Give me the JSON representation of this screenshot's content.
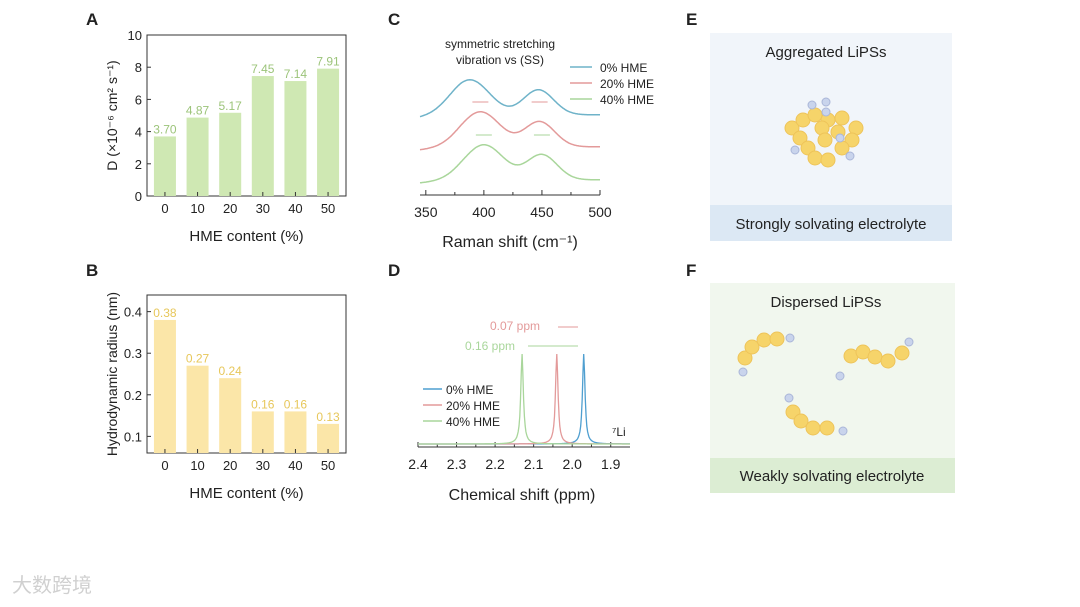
{
  "watermark": "大数跨境",
  "colors": {
    "green_bar": "#cfe8b3",
    "green_label": "#9cc47a",
    "yellow_bar": "#fbe6a8",
    "yellow_label": "#e7c75a",
    "c0": "#6fb3c9",
    "c20": "#e39a9a",
    "c40": "#a9d69b",
    "nmr0": "#4f9fd0",
    "ebox": "#f1f5fa",
    "eband": "#dce8f4",
    "fbox": "#f1f7ee",
    "fband": "#dcedd3",
    "sulfur": "#f6d46a",
    "li": "#c9d4ec"
  },
  "chart_data": [
    {
      "panel": "A",
      "type": "bar",
      "categories": [
        "0",
        "10",
        "20",
        "30",
        "40",
        "50"
      ],
      "values": [
        3.7,
        4.87,
        5.17,
        7.45,
        7.14,
        7.91
      ],
      "labels": [
        "3.70",
        "4.87",
        "5.17",
        "7.45",
        "7.14",
        "7.91"
      ],
      "xlabel": "HME content (%)",
      "ylabel": "D (×10⁻⁶ cm² s⁻¹)",
      "ylim": [
        0,
        10
      ],
      "yticks": [
        "0",
        "2",
        "4",
        "6",
        "8",
        "10"
      ]
    },
    {
      "panel": "B",
      "type": "bar",
      "categories": [
        "0",
        "10",
        "20",
        "30",
        "40",
        "50"
      ],
      "values": [
        0.38,
        0.27,
        0.24,
        0.16,
        0.16,
        0.13
      ],
      "labels": [
        "0.38",
        "0.27",
        "0.24",
        "0.16",
        "0.16",
        "0.13"
      ],
      "xlabel": "HME content (%)",
      "ylabel": "Hydrodynamic radius (nm)",
      "ylim": [
        0.06,
        0.44
      ],
      "yticks": [
        "0.1",
        "0.2",
        "0.3",
        "0.4"
      ],
      "ytick_values": [
        0.1,
        0.2,
        0.3,
        0.4
      ]
    },
    {
      "panel": "C",
      "type": "line",
      "annotation": [
        "symmetric stretching",
        "vibration vs (SS)"
      ],
      "xlabel": "Raman shift (cm⁻¹)",
      "xlim": [
        345,
        500
      ],
      "xticks": [
        "350",
        "400",
        "450",
        "500"
      ],
      "xtick_values": [
        350,
        400,
        450,
        500
      ],
      "series": [
        {
          "name": "0% HME",
          "peaks": [
            388,
            447
          ]
        },
        {
          "name": "20% HME",
          "peaks": [
            397,
            448
          ]
        },
        {
          "name": "40% HME",
          "peaks": [
            400,
            450
          ]
        }
      ]
    },
    {
      "panel": "D",
      "type": "line",
      "xlabel": "Chemical shift (ppm)",
      "xlim": [
        2.4,
        1.85
      ],
      "xticks": [
        "2.4",
        "2.3",
        "2.2",
        "2.1",
        "2.0",
        "1.9"
      ],
      "xtick_values": [
        2.4,
        2.3,
        2.2,
        2.1,
        2.0,
        1.9
      ],
      "nucleus": "⁷Li",
      "annotations": [
        "0.07 ppm",
        "0.16 ppm"
      ],
      "series": [
        {
          "name": "0% HME",
          "peak": 1.97
        },
        {
          "name": "20% HME",
          "peak": 2.04
        },
        {
          "name": "40% HME",
          "peak": 2.13
        }
      ]
    }
  ],
  "panelE": {
    "letter": "E",
    "title": "Aggregated LiPSs",
    "band": "Strongly solvating electrolyte"
  },
  "panelF": {
    "letter": "F",
    "title": "Dispersed LiPSs",
    "band": "Weakly solvating electrolyte"
  }
}
